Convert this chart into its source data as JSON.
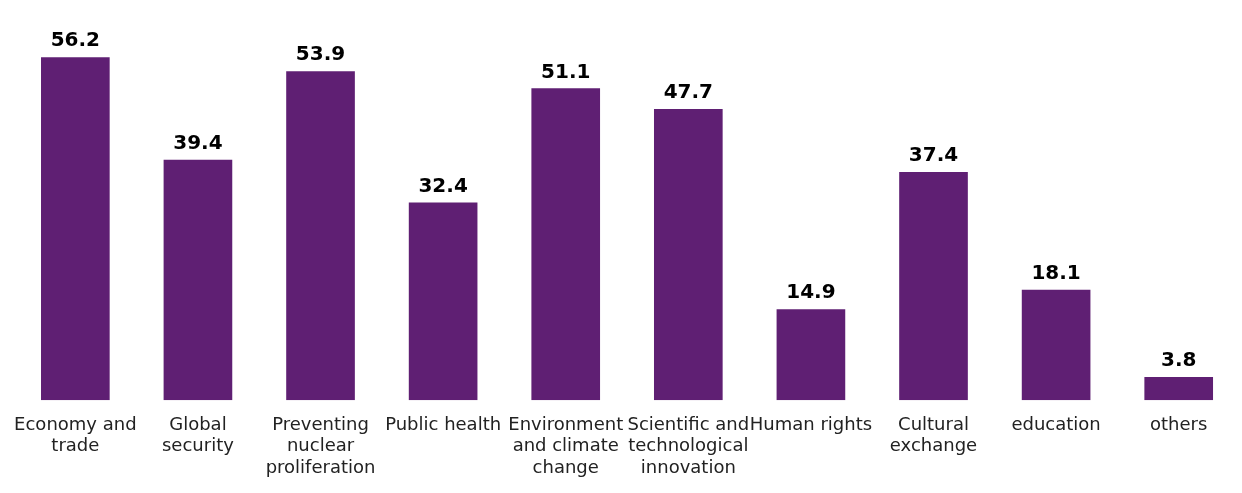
{
  "chart_data": {
    "type": "bar",
    "categories": [
      "Economy and trade",
      "Global security",
      "Preventing nuclear proliferation",
      "Public health",
      "Environment and climate change",
      "Scientific and technological innovation",
      "Human rights",
      "Cultural exchange",
      "education",
      "others"
    ],
    "values": [
      56.2,
      39.4,
      53.9,
      32.4,
      51.1,
      47.7,
      14.9,
      37.4,
      18.1,
      3.8
    ],
    "color": "#5f1f73",
    "data_labels": true,
    "grid": false,
    "legend": false
  }
}
